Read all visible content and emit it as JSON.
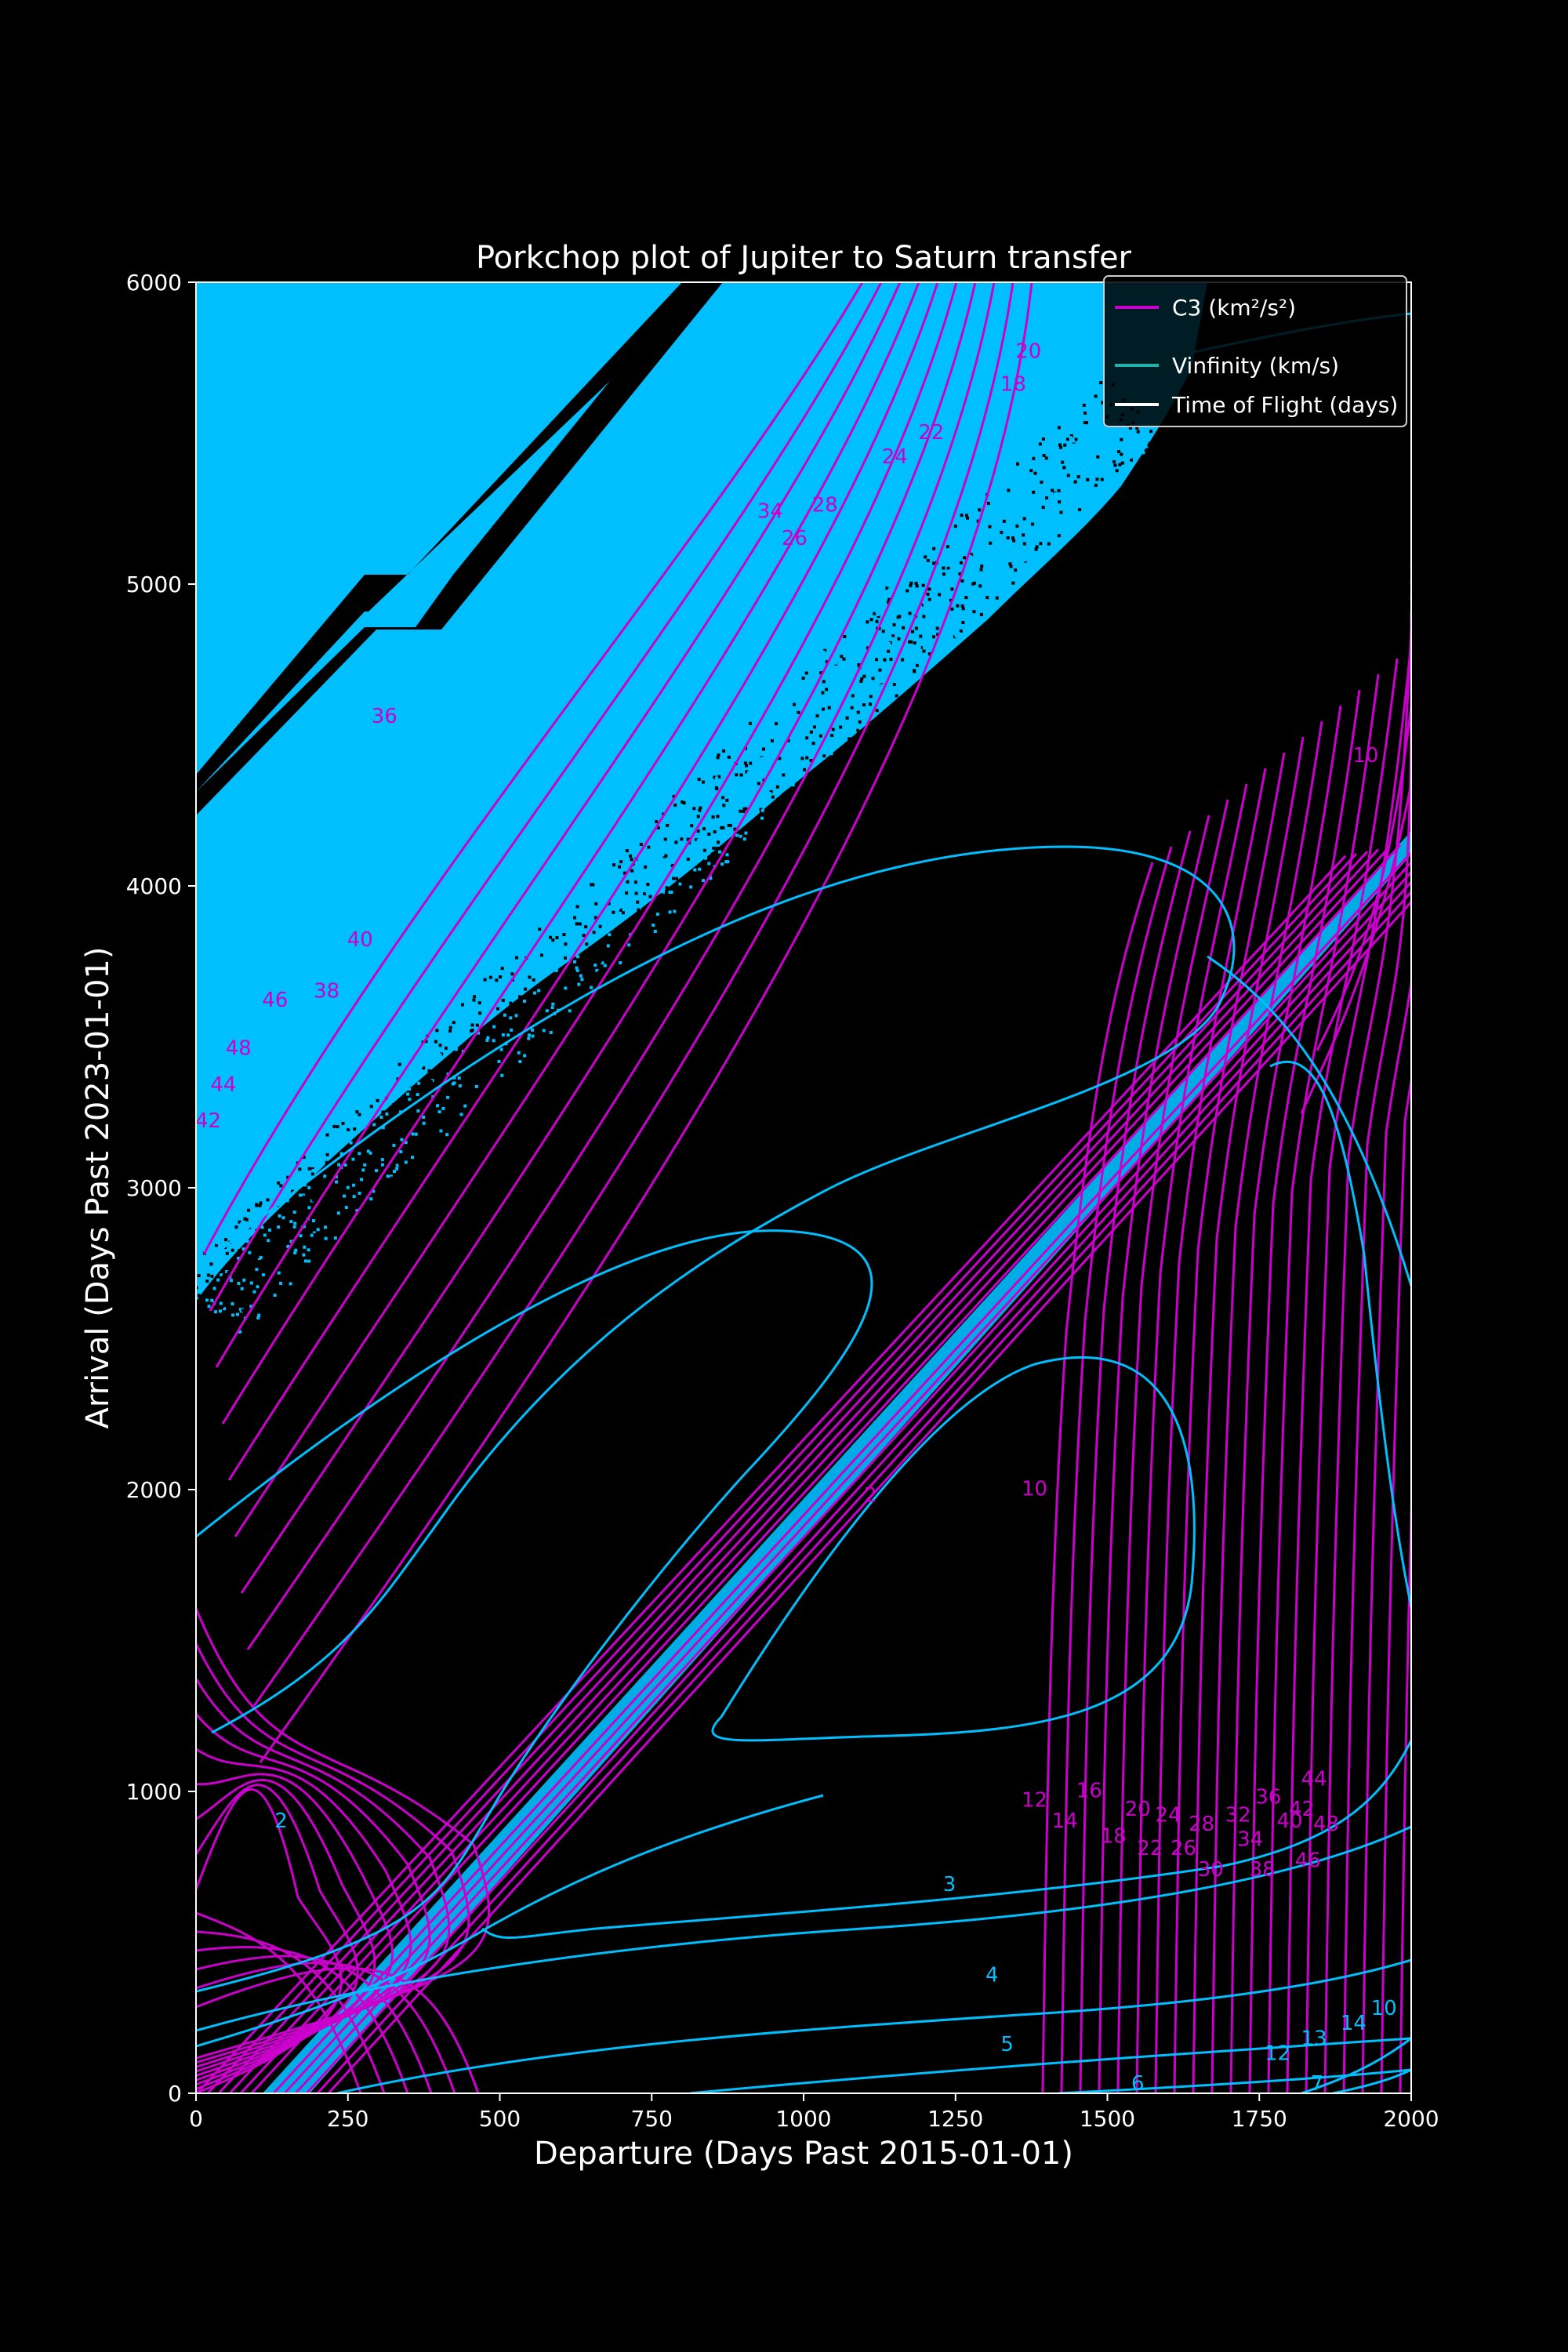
{
  "chart_data": {
    "type": "contour",
    "title": "Porkchop plot of Jupiter to Saturn transfer",
    "xlabel": "Departure (Days Past 2015-01-01)",
    "ylabel": "Arrival (Days Past 2023-01-01)",
    "xlim": [
      0,
      2000
    ],
    "ylim": [
      0,
      6000
    ],
    "xticks": [
      0,
      250,
      500,
      750,
      1000,
      1250,
      1500,
      1750,
      2000
    ],
    "yticks": [
      0,
      1000,
      2000,
      3000,
      4000,
      5000,
      6000
    ],
    "xtick_labels": [
      "0",
      "250",
      "500",
      "750",
      "1000",
      "1250",
      "1500",
      "1750",
      "2000"
    ],
    "ytick_labels": [
      "0",
      "1000",
      "2000",
      "3000",
      "4000",
      "5000",
      "6000"
    ],
    "legend": {
      "placement": "upper-right",
      "entries": [
        {
          "label": "C3 (km²/s²)",
          "color": "#cc00cc"
        },
        {
          "label": "Vinfinity (km/s)",
          "color": "#20b2aa"
        },
        {
          "label": "Time of Flight (days)",
          "color": "#ffffff"
        }
      ]
    },
    "colors": {
      "background": "#000000",
      "c3": "#cc00cc",
      "vinf": "#00bfff",
      "tof": "#ffffff",
      "infeasible_region": "#00bfff"
    },
    "c3_labels": [
      {
        "text": "10",
        "x": 1380,
        "y": 1980
      },
      {
        "text": "12",
        "x": 1380,
        "y": 950
      },
      {
        "text": "14",
        "x": 1430,
        "y": 880
      },
      {
        "text": "16",
        "x": 1470,
        "y": 980
      },
      {
        "text": "18",
        "x": 1510,
        "y": 830
      },
      {
        "text": "20",
        "x": 1550,
        "y": 920
      },
      {
        "text": "22",
        "x": 1570,
        "y": 790
      },
      {
        "text": "24",
        "x": 1600,
        "y": 900
      },
      {
        "text": "26",
        "x": 1625,
        "y": 790
      },
      {
        "text": "28",
        "x": 1655,
        "y": 870
      },
      {
        "text": "30",
        "x": 1670,
        "y": 720
      },
      {
        "text": "32",
        "x": 1715,
        "y": 900
      },
      {
        "text": "34",
        "x": 1735,
        "y": 820
      },
      {
        "text": "36",
        "x": 1765,
        "y": 960
      },
      {
        "text": "38",
        "x": 1755,
        "y": 720
      },
      {
        "text": "40",
        "x": 1800,
        "y": 880
      },
      {
        "text": "42",
        "x": 1820,
        "y": 920
      },
      {
        "text": "44",
        "x": 1840,
        "y": 1020
      },
      {
        "text": "46",
        "x": 1830,
        "y": 750
      },
      {
        "text": "48",
        "x": 1860,
        "y": 870
      },
      {
        "text": "10",
        "x": 1925,
        "y": 4410
      },
      {
        "text": "2",
        "x": 1110,
        "y": 1960
      },
      {
        "text": "42",
        "x": 20,
        "y": 3200
      },
      {
        "text": "44",
        "x": 45,
        "y": 3320
      },
      {
        "text": "48",
        "x": 70,
        "y": 3440
      },
      {
        "text": "46",
        "x": 130,
        "y": 3600
      },
      {
        "text": "38",
        "x": 215,
        "y": 3630
      },
      {
        "text": "40",
        "x": 270,
        "y": 3800
      },
      {
        "text": "36",
        "x": 310,
        "y": 4540
      },
      {
        "text": "26",
        "x": 985,
        "y": 5130
      },
      {
        "text": "28",
        "x": 1035,
        "y": 5240
      },
      {
        "text": "34",
        "x": 945,
        "y": 5220
      },
      {
        "text": "24",
        "x": 1150,
        "y": 5400
      },
      {
        "text": "22",
        "x": 1210,
        "y": 5480
      },
      {
        "text": "20",
        "x": 1370,
        "y": 5750
      },
      {
        "text": "18",
        "x": 1345,
        "y": 5640
      }
    ],
    "vinf_labels": [
      {
        "text": "2",
        "x": 140,
        "y": 880
      },
      {
        "text": "3",
        "x": 1240,
        "y": 670
      },
      {
        "text": "4",
        "x": 1310,
        "y": 370
      },
      {
        "text": "5",
        "x": 1335,
        "y": 140
      },
      {
        "text": "6",
        "x": 1550,
        "y": 10
      },
      {
        "text": "7",
        "x": 1845,
        "y": 10
      },
      {
        "text": "12",
        "x": 1780,
        "y": 110
      },
      {
        "text": "13",
        "x": 1840,
        "y": 160
      },
      {
        "text": "14",
        "x": 1905,
        "y": 210
      },
      {
        "text": "10",
        "x": 1955,
        "y": 260
      }
    ]
  }
}
